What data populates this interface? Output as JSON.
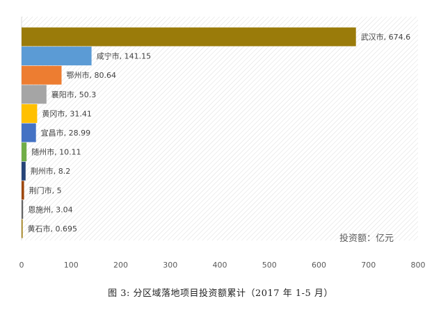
{
  "caption": "图 3: 分区域落地项目投资额累计（2017 年 1-5 月）",
  "chart_data": {
    "type": "bar",
    "orientation": "horizontal",
    "categories": [
      "武汉市",
      "咸宁市",
      "鄂州市",
      "襄阳市",
      "黄冈市",
      "宜昌市",
      "随州市",
      "荆州市",
      "荆门市",
      "恩施州",
      "黄石市"
    ],
    "values": [
      674.6,
      141.15,
      80.64,
      50.3,
      31.41,
      28.99,
      10.11,
      8.2,
      5,
      3.04,
      0.695
    ],
    "value_labels": [
      "674.6",
      "141.15",
      "80.64",
      "50.3",
      "31.41",
      "28.99",
      "10.11",
      "8.2",
      "5",
      "3.04",
      "0.695"
    ],
    "colors": [
      "#9A7B0A",
      "#5B9BD5",
      "#ED7D31",
      "#A5A5A5",
      "#FFC000",
      "#4472C4",
      "#70AD47",
      "#264478",
      "#9E480E",
      "#636363",
      "#997300"
    ],
    "unit_label": "投资额：亿元",
    "xlim": [
      0,
      800
    ],
    "x_ticks": [
      0,
      100,
      200,
      300,
      400,
      500,
      600,
      700,
      800
    ],
    "grid": false,
    "legend": "none",
    "label_format": "{category}, {value}"
  }
}
